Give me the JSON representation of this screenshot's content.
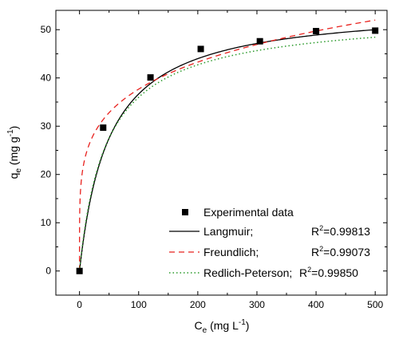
{
  "chart_data": {
    "type": "scatter",
    "xlabel": "C",
    "xlabel_sub": "e",
    "xlabel_unit": "(mg L",
    "xlabel_unit_sup": "-1",
    "xlabel_unit_close": ")",
    "ylabel": "q",
    "ylabel_sub": "e",
    "ylabel_unit": "(mg g",
    "ylabel_unit_sup": "-1",
    "ylabel_unit_close": ")",
    "xlim": [
      -40,
      520
    ],
    "ylim": [
      -5,
      54
    ],
    "xticks": [
      0,
      100,
      200,
      300,
      400,
      500
    ],
    "yticks": [
      0,
      10,
      20,
      30,
      40,
      50
    ],
    "grid": false,
    "legend_position": "bottom-right",
    "experimental": {
      "name": "Experimental data",
      "x": [
        0,
        40,
        120,
        205,
        305,
        400,
        500
      ],
      "y": [
        0,
        29.7,
        40.1,
        46.0,
        47.6,
        49.7,
        49.8
      ]
    },
    "models": [
      {
        "name": "Langmuir;",
        "r2_prefix": "R",
        "r2_sup": "2",
        "r2_value": "=0.99813",
        "color": "#000000",
        "dash": "",
        "kind": "langmuir",
        "params": {
          "qm": 55.0,
          "KL": 0.02
        }
      },
      {
        "name": "Freundlich;",
        "r2_prefix": "R",
        "r2_sup": "2",
        "r2_value": "=0.99073",
        "color": "#e8211d",
        "dash": "7,5",
        "kind": "freundlich",
        "params": {
          "KF": 15.0,
          "n": 5.0
        }
      },
      {
        "name": "Redlich-Peterson;",
        "r2_prefix": "R",
        "r2_sup": "2",
        "r2_value": "=0.99850",
        "color": "#2a9a2a",
        "dash": "1.5,3",
        "kind": "redlich",
        "params": {
          "K": 1.2,
          "a": 0.025,
          "beta": 0.985
        }
      }
    ]
  }
}
